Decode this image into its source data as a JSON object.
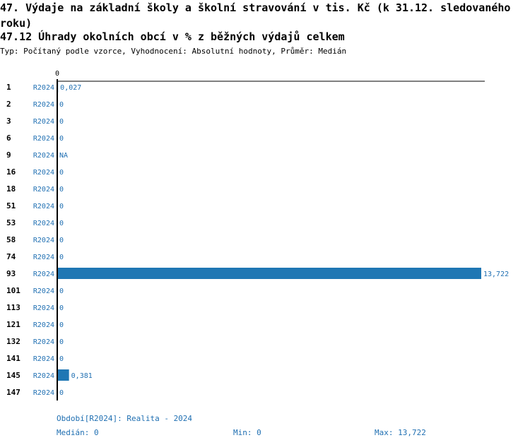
{
  "header": {
    "title": "47. Výdaje na základní školy a školní stravování v tis. Kč (k 31.12. sledovaného roku)",
    "subtitle": "47.12 Úhrady okolních obcí v % z běžných výdajů celkem",
    "type_line": "Typ: Počítaný podle vzorce, Vyhodnocení: Absolutní hodnoty, Průměr: Medián"
  },
  "chart_data": {
    "type": "bar",
    "orientation": "horizontal",
    "axis_zero_label": "0",
    "xlim": [
      0,
      13.722
    ],
    "categories": [
      "1",
      "2",
      "3",
      "6",
      "9",
      "16",
      "18",
      "51",
      "53",
      "58",
      "74",
      "93",
      "101",
      "113",
      "121",
      "132",
      "141",
      "145",
      "147"
    ],
    "series": [
      {
        "period": "R2024",
        "values": [
          0.027,
          0,
          0,
          0,
          null,
          0,
          0,
          0,
          0,
          0,
          0,
          13.722,
          0,
          0,
          0,
          0,
          0,
          0.381,
          0
        ],
        "labels": [
          "0,027",
          "0",
          "0",
          "0",
          "NA",
          "0",
          "0",
          "0",
          "0",
          "0",
          "0",
          "13,722",
          "0",
          "0",
          "0",
          "0",
          "0",
          "0,381",
          "0"
        ]
      }
    ],
    "bar_color": "#1f77b4",
    "text_color": "#1f6fb2"
  },
  "footer": {
    "period_label": "Období[R2024]: Realita - 2024",
    "median_label": "Medián: 0",
    "min_label": "Min: 0",
    "max_label": "Max: 13,722"
  }
}
